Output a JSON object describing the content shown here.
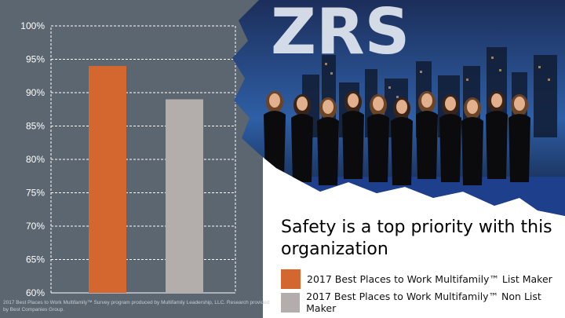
{
  "colors": {
    "panel": "#5b6670",
    "list_maker": "#d3672f",
    "non_list_maker": "#b3adac",
    "grid": "#ffffff"
  },
  "chart_data": {
    "type": "bar",
    "categories": [
      "2017 Best Places to Work Multifamily™ List Maker",
      "2017 Best Places to Work Multifamily™ Non List Maker"
    ],
    "values": [
      94,
      89
    ],
    "ylim": [
      60,
      100
    ],
    "yticks": [
      "60%",
      "65%",
      "70%",
      "75%",
      "80%",
      "85%",
      "90%",
      "95%",
      "100%"
    ],
    "grid": true,
    "legend": "bottom-right"
  },
  "headline": "Safety is a top priority with this organization",
  "legend": [
    {
      "label": "2017 Best Places to Work Multifamily™ List Maker",
      "color": "#d3672f"
    },
    {
      "label": "2017 Best Places to Work Multifamily™ Non List Maker",
      "color": "#b3adac"
    }
  ],
  "footnote": "2017 Best Places to Work Multifamily™ Survey program produced by Multifamily Leadership, LLC. Research provided by Best Companies Group.",
  "photo": {
    "sign_text": "ZRS",
    "subject": "team-photo"
  }
}
